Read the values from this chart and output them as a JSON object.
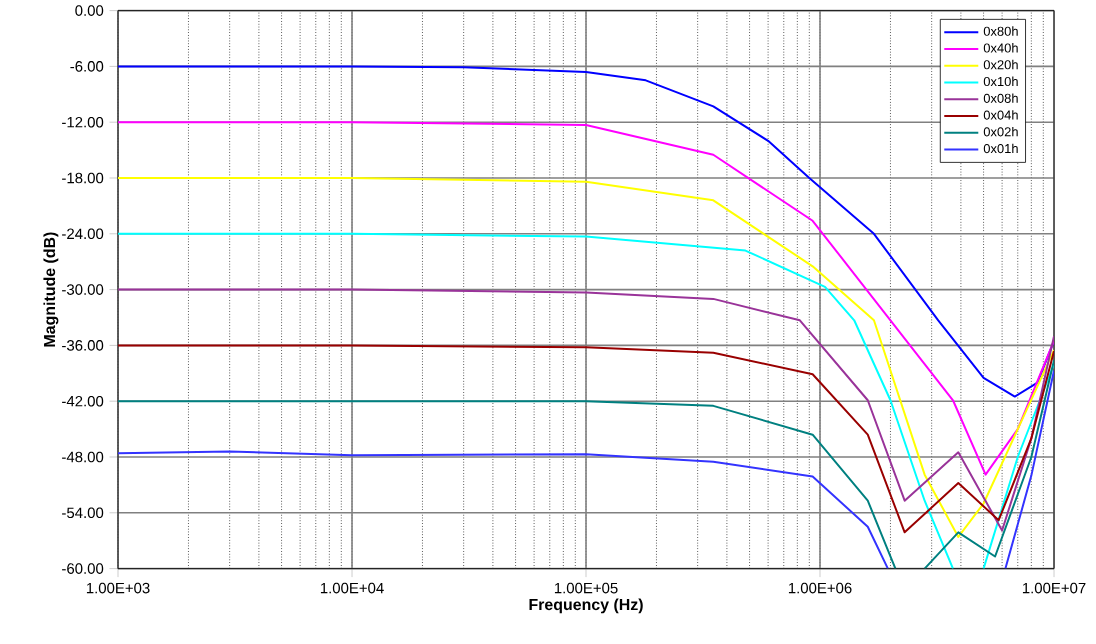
{
  "chart_data": {
    "type": "line",
    "xlabel": "Frequency (Hz)",
    "ylabel": "Magnitude (dB)",
    "log": "x",
    "grid": true,
    "legend": "top right",
    "xlim": [
      1000,
      10000000
    ],
    "xticks": [
      {
        "value": 1000,
        "label": "1.00E+03"
      },
      {
        "value": 10000,
        "label": "1.00E+04"
      },
      {
        "value": 100000,
        "label": "1.00E+05"
      },
      {
        "value": 1000000,
        "label": "1.00E+06"
      },
      {
        "value": 10000000,
        "label": "1.00E+07"
      }
    ],
    "ylim": [
      -60,
      0
    ],
    "yticks": [
      {
        "value": 0,
        "label": "0.00"
      },
      {
        "value": -6,
        "label": "-6.00"
      },
      {
        "value": -12,
        "label": "-12.00"
      },
      {
        "value": -18,
        "label": "-18.00"
      },
      {
        "value": -24,
        "label": "-24.00"
      },
      {
        "value": -30,
        "label": "-30.00"
      },
      {
        "value": -36,
        "label": "-36.00"
      },
      {
        "value": -42,
        "label": "-42.00"
      },
      {
        "value": -48,
        "label": "-48.00"
      },
      {
        "value": -54,
        "label": "-54.00"
      },
      {
        "value": -60,
        "label": "-60.00"
      }
    ],
    "series": [
      {
        "name": "0x80h",
        "color": "#0000ff",
        "x": [
          1000,
          10000,
          30000,
          100000,
          180000,
          350000,
          600000,
          900000,
          1700000,
          3200000,
          5000000,
          6800000,
          8500000,
          10000000
        ],
        "values": [
          -6,
          -6,
          -6.1,
          -6.6,
          -7.5,
          -10.3,
          -14,
          -18,
          -24,
          -33.3,
          -39.5,
          -41.5,
          -40,
          -35.5
        ]
      },
      {
        "name": "0x40h",
        "color": "#ff00ff",
        "x": [
          1000,
          10000,
          100000,
          350000,
          930000,
          2000000,
          3700000,
          5100000,
          7000000,
          10000000
        ],
        "values": [
          -12,
          -12,
          -12.3,
          -15.5,
          -22.6,
          -33.3,
          -41.9,
          -49.9,
          -45,
          -35.5
        ]
      },
      {
        "name": "0x20h",
        "color": "#ffff00",
        "x": [
          1000,
          10000,
          100000,
          350000,
          930000,
          1700000,
          2800000,
          3900000,
          5000000,
          7000000,
          10000000
        ],
        "values": [
          -18,
          -18,
          -18.4,
          -20.4,
          -27.5,
          -33.3,
          -49.9,
          -56.6,
          -53,
          -45,
          -36.5
        ]
      },
      {
        "name": "0x10h",
        "color": "#00ffff",
        "x": [
          1000,
          10000,
          100000,
          480000,
          1050000,
          1400000,
          2000000,
          2800000,
          3700000,
          4300000,
          5000000,
          7000000,
          10000000
        ],
        "values": [
          -24,
          -24,
          -24.3,
          -25.8,
          -29.7,
          -33.3,
          -41.9,
          -52.7,
          -60,
          null,
          -60,
          -48,
          -38
        ]
      },
      {
        "name": "0x08h",
        "color": "#993399",
        "x": [
          1000,
          10000,
          100000,
          350000,
          820000,
          1600000,
          2300000,
          3900000,
          6000000,
          8000000,
          10000000
        ],
        "values": [
          -30,
          -30,
          -30.3,
          -31,
          -33.3,
          -41.9,
          -52.7,
          -47.5,
          -55.9,
          -46,
          -35
        ]
      },
      {
        "name": "0x04h",
        "color": "#990000",
        "x": [
          1000,
          10000,
          100000,
          350000,
          930000,
          1600000,
          2300000,
          3900000,
          5800000,
          8000000,
          10000000
        ],
        "values": [
          -36,
          -36,
          -36.2,
          -36.8,
          -39.1,
          -45.6,
          -56.1,
          -50.8,
          -54.8,
          -46,
          -36.6
        ]
      },
      {
        "name": "0x02h",
        "color": "#008080",
        "x": [
          1000,
          10000,
          100000,
          350000,
          930000,
          1600000,
          2100000,
          2400000,
          2800000,
          3900000,
          5600000,
          8000000,
          10000000
        ],
        "values": [
          -42,
          -42,
          -42,
          -42.5,
          -45.6,
          -52.7,
          -60,
          null,
          -60,
          -56.1,
          -58.7,
          -48,
          -37.6
        ]
      },
      {
        "name": "0x01h",
        "color": "#3333ff",
        "x": [
          1000,
          3000,
          10000,
          100000,
          350000,
          930000,
          1600000,
          1950000,
          4000000,
          6200000,
          8000000,
          10000000
        ],
        "values": [
          -47.6,
          -47.4,
          -47.8,
          -47.7,
          -48.5,
          -50.1,
          -55.5,
          -60,
          null,
          -60,
          -50,
          -38.7
        ]
      }
    ]
  }
}
